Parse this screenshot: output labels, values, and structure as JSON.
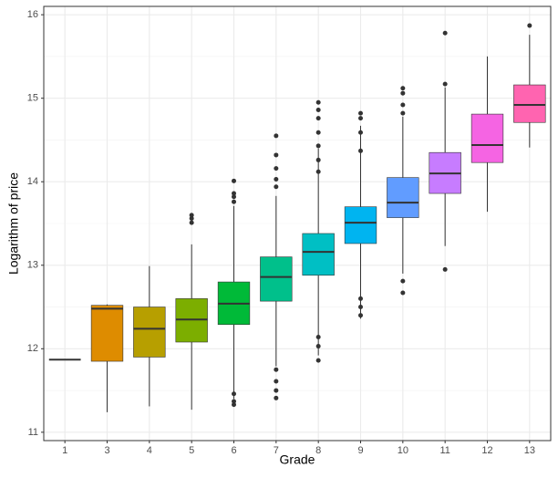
{
  "chart_data": {
    "type": "box",
    "xlabel": "Grade",
    "ylabel": "Logarithm of price",
    "ylim": [
      10.9,
      16.1
    ],
    "yticks": [
      11,
      12,
      13,
      14,
      15,
      16
    ],
    "grid": true,
    "categories": [
      "1",
      "3",
      "4",
      "5",
      "6",
      "7",
      "8",
      "9",
      "10",
      "11",
      "12",
      "13"
    ],
    "boxes": [
      {
        "min": 11.87,
        "q1": 11.87,
        "median": 11.87,
        "q3": 11.87,
        "max": 11.87,
        "outliers": [],
        "color": "#F8766D"
      },
      {
        "min": 11.24,
        "q1": 11.85,
        "median": 12.48,
        "q3": 12.52,
        "max": 12.53,
        "outliers": [],
        "color": "#DE8C00"
      },
      {
        "min": 11.31,
        "q1": 11.9,
        "median": 12.24,
        "q3": 12.5,
        "max": 12.99,
        "outliers": [],
        "color": "#B79F00"
      },
      {
        "min": 11.27,
        "q1": 12.08,
        "median": 12.35,
        "q3": 12.6,
        "max": 13.25,
        "outliers": [
          13.6,
          13.56,
          13.51
        ],
        "color": "#7CAE00"
      },
      {
        "min": 11.4,
        "q1": 12.29,
        "median": 12.54,
        "q3": 12.8,
        "max": 13.71,
        "outliers": [
          14.01,
          13.86,
          13.82,
          13.76,
          11.46,
          11.37,
          11.33
        ],
        "color": "#00BA38"
      },
      {
        "min": 11.79,
        "q1": 12.57,
        "median": 12.86,
        "q3": 13.1,
        "max": 13.83,
        "outliers": [
          14.55,
          14.32,
          14.16,
          14.03,
          13.94,
          11.75,
          11.61,
          11.5,
          11.41
        ],
        "color": "#00C08B"
      },
      {
        "min": 11.92,
        "q1": 12.88,
        "median": 13.16,
        "q3": 13.38,
        "max": 14.4,
        "outliers": [
          14.95,
          14.86,
          14.76,
          14.59,
          14.43,
          14.26,
          14.12,
          12.14,
          12.03,
          11.86
        ],
        "color": "#00BFC4"
      },
      {
        "min": 12.36,
        "q1": 13.26,
        "median": 13.51,
        "q3": 13.7,
        "max": 14.67,
        "outliers": [
          14.82,
          14.76,
          14.59,
          14.37,
          12.6,
          12.5,
          12.4
        ],
        "color": "#00B4F0"
      },
      {
        "min": 12.9,
        "q1": 13.57,
        "median": 13.75,
        "q3": 14.05,
        "max": 14.78,
        "outliers": [
          15.12,
          15.06,
          14.92,
          14.82,
          12.81,
          12.67
        ],
        "color": "#619CFF"
      },
      {
        "min": 13.23,
        "q1": 13.86,
        "median": 14.1,
        "q3": 14.35,
        "max": 15.13,
        "outliers": [
          15.78,
          15.17,
          12.95
        ],
        "color": "#C77CFF"
      },
      {
        "min": 13.64,
        "q1": 14.23,
        "median": 14.44,
        "q3": 14.81,
        "max": 15.5,
        "outliers": [],
        "color": "#F564E3"
      },
      {
        "min": 14.41,
        "q1": 14.71,
        "median": 14.92,
        "q3": 15.16,
        "max": 15.76,
        "outliers": [
          15.87
        ],
        "color": "#FF64B0"
      }
    ]
  }
}
